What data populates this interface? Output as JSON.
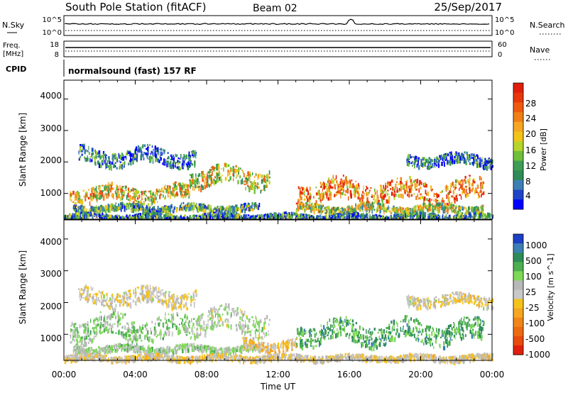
{
  "header": {
    "station": "South Pole Station (fitACF)",
    "beam": "Beam 02",
    "date": "25/Sep/2017"
  },
  "panels": {
    "nsky": {
      "label": "N.Sky",
      "ticks_left": [
        "10^5",
        "10^0"
      ],
      "ticks_right": [
        "10^5",
        "10^0"
      ],
      "right_label": "N.Search"
    },
    "freq": {
      "label_top": "Freq.",
      "label_bottom": "[MHz]",
      "ticks_left": [
        "18",
        "8"
      ],
      "ticks_right": [
        "60",
        "0"
      ],
      "right_label": "Nave"
    },
    "cpid": {
      "label": "CPID",
      "text": "normalsound (fast) 157 RF"
    }
  },
  "power_panel": {
    "ylabel": "Slant Range [km]",
    "yticks": [
      "1000",
      "2000",
      "3000",
      "4000"
    ],
    "colorbar": {
      "title": "Power [dB]",
      "labels": [
        "4",
        "8",
        "12",
        "16",
        "20",
        "24",
        "28"
      ],
      "colors": [
        "#0000ff",
        "#1f44c8",
        "#3d7fb5",
        "#2e8b57",
        "#3e9d54",
        "#6fbf3a",
        "#b7d42b",
        "#f0c419",
        "#f5a623",
        "#f07f17",
        "#ee5b10",
        "#e8360d",
        "#e01e0c"
      ]
    }
  },
  "velocity_panel": {
    "ylabel": "Slant Range [km]",
    "yticks": [
      "1000",
      "2000",
      "3000",
      "4000"
    ],
    "colorbar": {
      "title": "Velocity [m s^-1]",
      "labels": [
        "1000",
        "500",
        "100",
        "25",
        "-25",
        "-100",
        "-500",
        "-1000"
      ],
      "colors": [
        "#1d3fc4",
        "#3d7fb5",
        "#2e8b57",
        "#4caf50",
        "#7ed957",
        "#b8b8b8",
        "#c8c8c8",
        "#f5c21b",
        "#f5a623",
        "#f0861a",
        "#ee6a12",
        "#e84b0d",
        "#e0200c"
      ]
    }
  },
  "xaxis": {
    "label": "Time UT",
    "ticks": [
      "00:00",
      "04:00",
      "08:00",
      "12:00",
      "16:00",
      "20:00",
      "00:00"
    ]
  },
  "chart_data": [
    {
      "type": "heatmap",
      "title": "Power [dB]",
      "xlabel": "Time UT",
      "ylabel": "Slant Range [km]",
      "xlim": [
        0,
        24
      ],
      "ylim": [
        180,
        4600
      ],
      "clim": [
        0,
        30
      ],
      "bands": [
        {
          "t0": 0.8,
          "t1": 7.4,
          "r0": 1900,
          "r1": 2500,
          "value": 6
        },
        {
          "t0": 19.2,
          "t1": 24.0,
          "r0": 1900,
          "r1": 2300,
          "value": 6
        },
        {
          "t0": 0.3,
          "t1": 7.0,
          "r0": 750,
          "r1": 1300,
          "value": 18
        },
        {
          "t0": 7.0,
          "t1": 11.5,
          "r0": 1200,
          "r1": 1900,
          "value": 16
        },
        {
          "t0": 13.0,
          "t1": 23.5,
          "r0": 700,
          "r1": 1500,
          "value": 22
        },
        {
          "t0": 0.5,
          "t1": 11.0,
          "r0": 450,
          "r1": 700,
          "value": 10
        },
        {
          "t0": 13.0,
          "t1": 23.5,
          "r0": 400,
          "r1": 700,
          "value": 14
        },
        {
          "t0": 0.0,
          "t1": 24.0,
          "r0": 200,
          "r1": 400,
          "value": 8
        }
      ]
    },
    {
      "type": "heatmap",
      "title": "Velocity [m s^-1]",
      "xlabel": "Time UT",
      "ylabel": "Slant Range [km]",
      "xlim": [
        0,
        24
      ],
      "ylim": [
        180,
        4600
      ],
      "clim": [
        -1000,
        1000
      ],
      "bands": [
        {
          "t0": 0.8,
          "t1": 7.4,
          "r0": 1900,
          "r1": 2500,
          "value": 0
        },
        {
          "t0": 19.2,
          "t1": 24.0,
          "r0": 1900,
          "r1": 2300,
          "value": 0
        },
        {
          "t0": 0.3,
          "t1": 7.0,
          "r0": 750,
          "r1": 1700,
          "value": -300
        },
        {
          "t0": 7.0,
          "t1": 11.5,
          "r0": 1000,
          "r1": 1900,
          "value": -150
        },
        {
          "t0": 13.0,
          "t1": 23.5,
          "r0": 700,
          "r1": 1500,
          "value": -500
        },
        {
          "t0": 0.5,
          "t1": 11.0,
          "r0": 450,
          "r1": 700,
          "value": -200
        },
        {
          "t0": 10.0,
          "t1": 13.0,
          "r0": 500,
          "r1": 900,
          "value": 150
        },
        {
          "t0": 0.0,
          "t1": 24.0,
          "r0": 200,
          "r1": 400,
          "value": 40
        }
      ]
    }
  ]
}
